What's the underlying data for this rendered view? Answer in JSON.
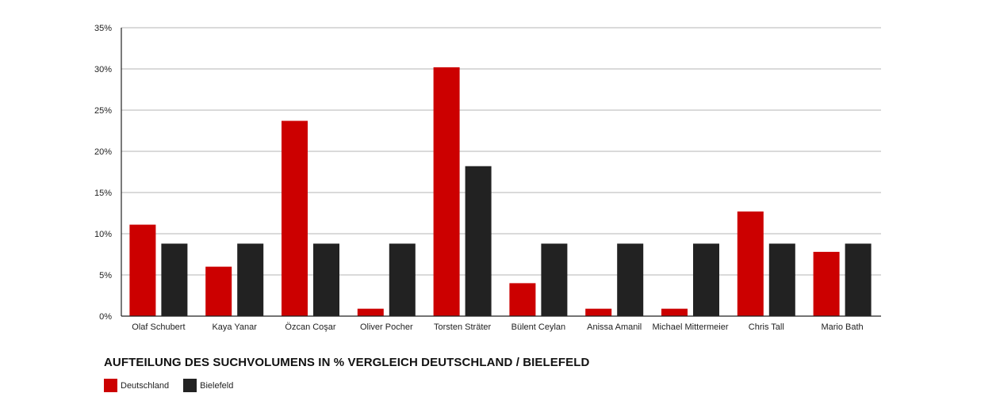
{
  "chart_data": {
    "type": "bar",
    "title": "AUFTEILUNG DES SUCHVOLUMENS IN % VERGLEICH DEUTSCHLAND / BIELEFELD",
    "categories": [
      "Olaf Schubert",
      "Kaya Yanar",
      "Özcan Coşar",
      "Oliver Pocher",
      "Torsten Sträter",
      "Bülent Ceylan",
      "Anissa Amanil",
      "Michael Mittermeier",
      "Chris Tall",
      "Mario Bath"
    ],
    "series": [
      {
        "name": "Deutschland",
        "color": "#cc0000",
        "values": [
          11.1,
          6.0,
          23.7,
          0.9,
          30.2,
          4.0,
          0.9,
          0.9,
          12.7,
          7.8
        ]
      },
      {
        "name": "Bielefeld",
        "color": "#222222",
        "values": [
          8.8,
          8.8,
          8.8,
          8.8,
          18.2,
          8.8,
          8.8,
          8.8,
          8.8,
          8.8
        ]
      }
    ],
    "ylim": [
      0,
      35
    ],
    "yticks": [
      "0%",
      "5%",
      "10%",
      "15%",
      "20%",
      "25%",
      "30%",
      "35%"
    ],
    "grid": true,
    "legend_position": "bottom-left"
  }
}
